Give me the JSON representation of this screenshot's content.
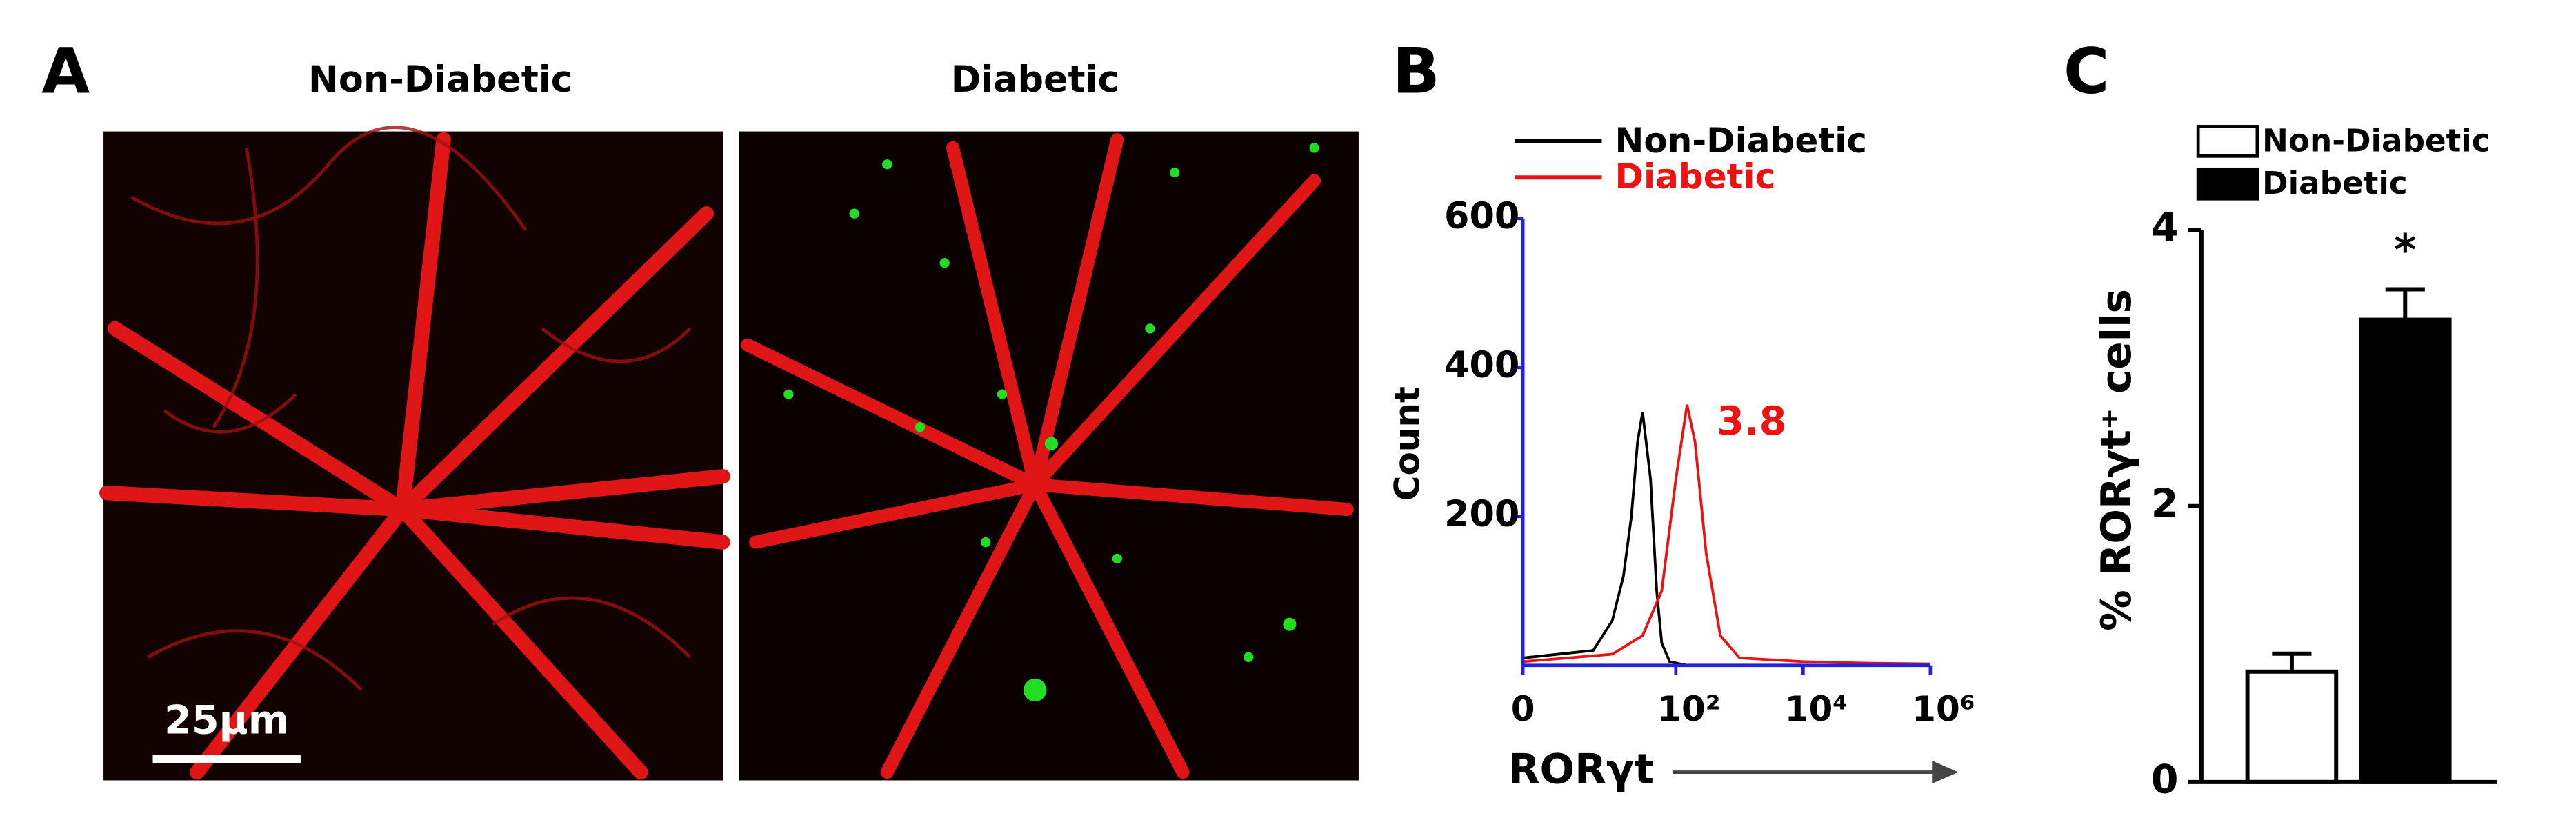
{
  "images": {
    "label": "A",
    "titles": [
      "Non-Diabetic",
      "Diabetic"
    ],
    "scale_bar": "25μm"
  },
  "chart_data": [
    {
      "type": "line",
      "panel_label": "B",
      "xlabel": "RORγt",
      "ylabel": "Count",
      "xscale": "arcsinh",
      "xlim": [
        0,
        1000000
      ],
      "ylim": [
        0,
        600
      ],
      "xticks": [
        0,
        {
          "value": 100,
          "label": "10²"
        },
        {
          "value": 10000,
          "label": "10⁴"
        },
        {
          "value": 1000000,
          "label": "10⁶"
        }
      ],
      "yticks": [
        200,
        400,
        600
      ],
      "axis_color": "#2222dd",
      "annotation": "3.8",
      "series": [
        {
          "name": "Non-Diabetic",
          "color": "#000000",
          "x": [
            0,
            5,
            10,
            15,
            20,
            25,
            30,
            40,
            50,
            60,
            80,
            150,
            1000,
            100000
          ],
          "values": [
            10,
            20,
            60,
            120,
            200,
            300,
            340,
            250,
            100,
            30,
            5,
            0,
            0,
            0
          ]
        },
        {
          "name": "Diabetic",
          "color": "#ee1111",
          "x": [
            0,
            10,
            30,
            60,
            100,
            150,
            200,
            300,
            500,
            1000,
            10000,
            100000,
            1000000
          ],
          "values": [
            5,
            15,
            40,
            100,
            250,
            350,
            300,
            150,
            40,
            10,
            5,
            3,
            2
          ]
        }
      ]
    },
    {
      "type": "bar",
      "panel_label": "C",
      "ylabel": "% RORγt⁺ cells",
      "ylim": [
        0,
        4
      ],
      "yticks": [
        0,
        2,
        4
      ],
      "annotation": "*",
      "series": [
        {
          "name": "Non-Diabetic",
          "color": "#ffffff",
          "values": [
            0.8
          ],
          "errors": [
            0.13
          ]
        },
        {
          "name": "Diabetic",
          "color": "#000000",
          "values": [
            3.35
          ],
          "errors": [
            0.22
          ]
        }
      ]
    }
  ]
}
